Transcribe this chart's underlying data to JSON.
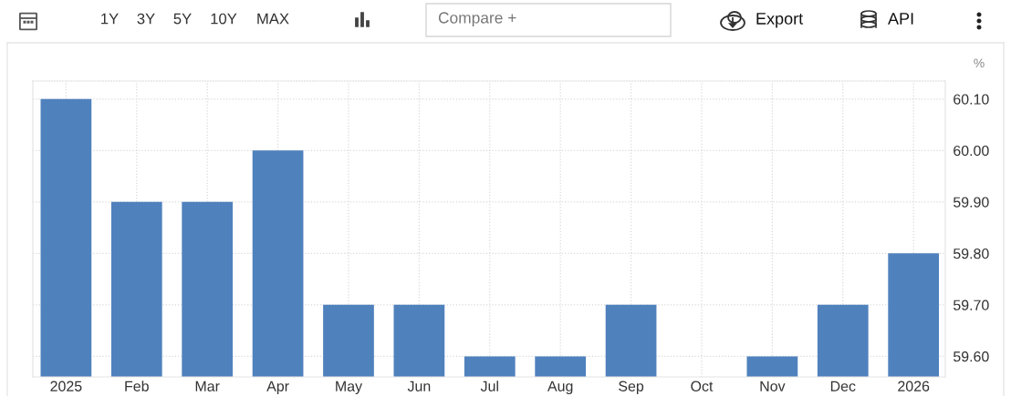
{
  "chart_data": {
    "type": "bar",
    "ylabel": "%",
    "categories": [
      "2025",
      "Feb",
      "Mar",
      "Apr",
      "May",
      "Jun",
      "Jul",
      "Aug",
      "Sep",
      "Oct",
      "Nov",
      "Dec",
      "2026"
    ],
    "values": [
      60.1,
      59.9,
      59.9,
      60.0,
      59.7,
      59.7,
      59.6,
      59.6,
      59.7,
      null,
      59.6,
      59.7,
      59.8
    ],
    "color": "#4f81bd",
    "ylim": [
      59.56,
      60.135
    ],
    "yticks": [
      {
        "value": 59.6,
        "label": "59.60"
      },
      {
        "value": 59.7,
        "label": "59.70"
      },
      {
        "value": 59.8,
        "label": "59.80"
      },
      {
        "value": 59.9,
        "label": "59.90"
      },
      {
        "value": 60.0,
        "label": "60.00"
      },
      {
        "value": 60.1,
        "label": "60.10"
      }
    ],
    "grid": true,
    "annotations": [
      "1Y",
      "3Y",
      "5Y",
      "10Y",
      "MAX",
      "Compare +",
      "Export",
      "API"
    ]
  }
}
